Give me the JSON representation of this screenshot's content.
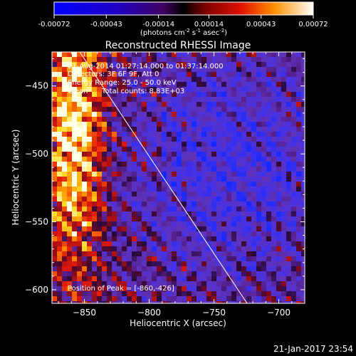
{
  "chart_data": {
    "type": "heatmap",
    "title": "Reconstructed RHESSI Image",
    "xlabel": "Heliocentric X (arcsec)",
    "ylabel": "Heliocentric Y (arcsec)",
    "xlim": [
      -875,
      -680
    ],
    "ylim": [
      -610,
      -425
    ],
    "xticks": [
      -850,
      -800,
      -750,
      -700
    ],
    "yticks": [
      -450,
      -500,
      -550,
      -600
    ],
    "colorbar": {
      "min": -0.00072,
      "max": 0.00072,
      "ticks": [
        "-0.00072",
        "-0.00043",
        "-0.00014",
        "0.00014",
        "0.00043",
        "0.00072"
      ],
      "label_main": "(photons cm",
      "label_exp1": "-2",
      "label_mid": " s",
      "label_exp2": "-1",
      "label_end": " asec",
      "label_exp3": "-2",
      "label_close": ")"
    },
    "annotations": {
      "time_range": "21-Aug-2014 01:27:14.000 to 01:37:14.000",
      "detectors": "Detectors: 3F 6F 9F, Att 0",
      "energy": "Energy Range: 25.0 - 50.0 keV",
      "method": "Clean",
      "total_counts": "Total counts: 8.83E+03",
      "peak": "Position of Peak = [-860,-426]"
    },
    "peak_position": [
      -860,
      -426
    ],
    "footer_date": "21-Jan-2017 23:54",
    "limb": "white line (solar limb) from top-left to bottom-right"
  }
}
